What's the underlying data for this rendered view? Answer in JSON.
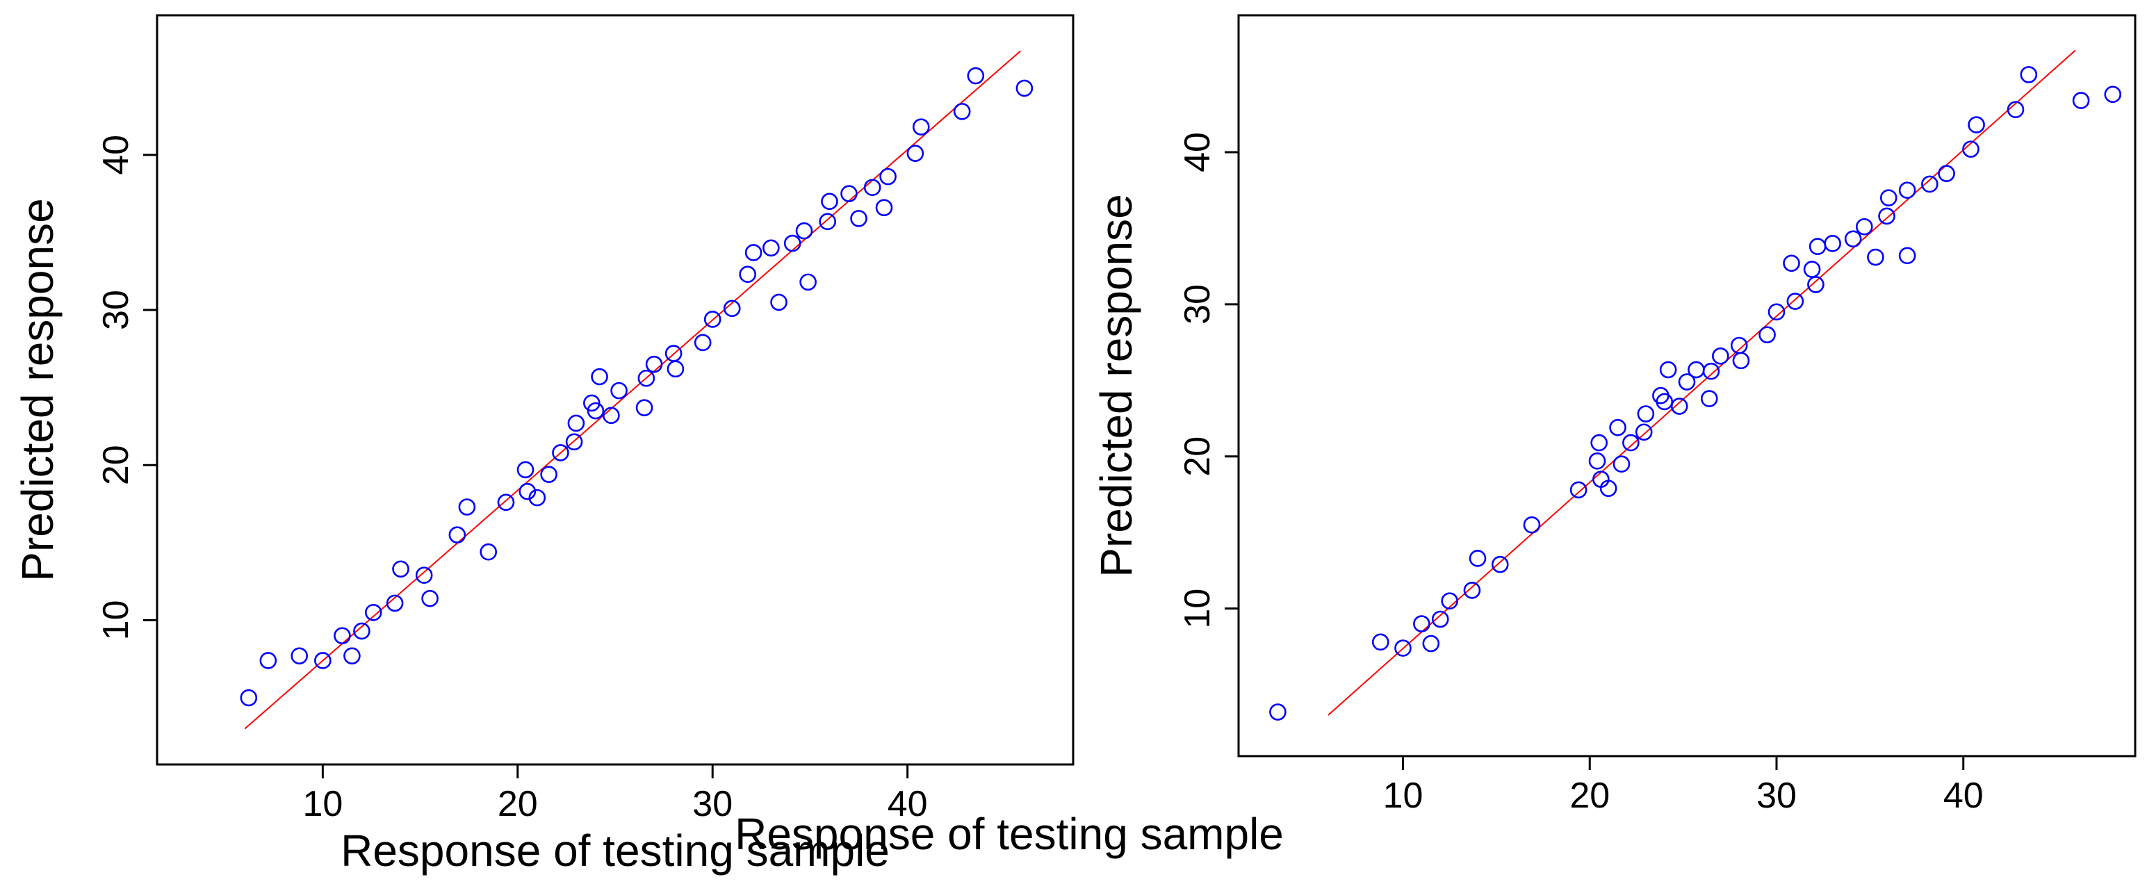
{
  "colors": {
    "points": "#0000ff",
    "fit_line": "#ff0000",
    "axes": "#000000"
  },
  "chart_data": [
    {
      "type": "scatter",
      "xlabel": "Response of testing sample",
      "ylabel": "Predicted response",
      "xlim": [
        1.5,
        48.5
      ],
      "ylim": [
        0.7,
        49.0
      ],
      "xticks": [
        "10",
        "20",
        "30",
        "40"
      ],
      "xtick_values": [
        10,
        20,
        30,
        40
      ],
      "yticks": [
        "10",
        "20",
        "30",
        "40"
      ],
      "ytick_values": [
        10,
        20,
        30,
        40
      ],
      "fit_line": [
        [
          6,
          3
        ],
        [
          45.8,
          46.7
        ]
      ],
      "points": [
        [
          6.2,
          5.0
        ],
        [
          7.2,
          7.4
        ],
        [
          8.8,
          7.7
        ],
        [
          10.0,
          7.4
        ],
        [
          11.0,
          9.0
        ],
        [
          11.5,
          7.7
        ],
        [
          12.0,
          9.3
        ],
        [
          12.6,
          10.5
        ],
        [
          13.7,
          11.1
        ],
        [
          14.0,
          13.3
        ],
        [
          15.2,
          12.9
        ],
        [
          15.5,
          11.4
        ],
        [
          16.9,
          15.5
        ],
        [
          17.4,
          17.3
        ],
        [
          18.5,
          14.4
        ],
        [
          19.4,
          17.6
        ],
        [
          20.4,
          19.7
        ],
        [
          20.5,
          18.3
        ],
        [
          21.0,
          17.9
        ],
        [
          21.6,
          19.4
        ],
        [
          22.2,
          20.8
        ],
        [
          22.9,
          21.5
        ],
        [
          23.0,
          22.7
        ],
        [
          23.8,
          24.0
        ],
        [
          24.0,
          23.5
        ],
        [
          24.2,
          25.7
        ],
        [
          24.8,
          23.2
        ],
        [
          25.2,
          24.8
        ],
        [
          26.5,
          23.7
        ],
        [
          26.6,
          25.6
        ],
        [
          27.0,
          26.5
        ],
        [
          28.0,
          27.2
        ],
        [
          28.1,
          26.2
        ],
        [
          29.5,
          27.9
        ],
        [
          30.0,
          29.4
        ],
        [
          31.0,
          30.1
        ],
        [
          31.8,
          32.3
        ],
        [
          32.1,
          33.7
        ],
        [
          33.0,
          34.0
        ],
        [
          33.4,
          30.5
        ],
        [
          34.1,
          34.3
        ],
        [
          34.7,
          35.1
        ],
        [
          34.9,
          31.8
        ],
        [
          35.9,
          35.7
        ],
        [
          36.0,
          37.0
        ],
        [
          37.0,
          37.5
        ],
        [
          37.5,
          35.9
        ],
        [
          38.2,
          37.9
        ],
        [
          38.8,
          36.6
        ],
        [
          39.0,
          38.6
        ],
        [
          40.4,
          40.1
        ],
        [
          40.7,
          41.8
        ],
        [
          42.8,
          42.8
        ],
        [
          43.5,
          45.1
        ],
        [
          46.0,
          44.3
        ]
      ]
    },
    {
      "type": "scatter",
      "xlabel": "Response of testing sample",
      "ylabel": "Predicted response",
      "xlim": [
        1.2,
        49.2
      ],
      "ylim": [
        0.3,
        49.0
      ],
      "xticks": [
        "10",
        "20",
        "30",
        "40"
      ],
      "xtick_values": [
        10,
        20,
        30,
        40
      ],
      "yticks": [
        "10",
        "20",
        "30",
        "40"
      ],
      "ytick_values": [
        10,
        20,
        30,
        40
      ],
      "fit_line": [
        [
          6,
          3
        ],
        [
          46,
          46.7
        ]
      ],
      "points": [
        [
          3.3,
          3.2
        ],
        [
          8.8,
          7.8
        ],
        [
          10.0,
          7.4
        ],
        [
          11.0,
          9.0
        ],
        [
          11.5,
          7.7
        ],
        [
          12.0,
          9.3
        ],
        [
          12.5,
          10.5
        ],
        [
          13.7,
          11.2
        ],
        [
          14.0,
          13.3
        ],
        [
          15.2,
          12.9
        ],
        [
          16.9,
          15.5
        ],
        [
          19.4,
          17.8
        ],
        [
          20.4,
          19.7
        ],
        [
          20.5,
          20.9
        ],
        [
          20.6,
          18.5
        ],
        [
          21.0,
          17.9
        ],
        [
          21.5,
          21.9
        ],
        [
          21.7,
          19.5
        ],
        [
          22.2,
          20.9
        ],
        [
          22.9,
          21.6
        ],
        [
          23.0,
          22.8
        ],
        [
          23.8,
          24.0
        ],
        [
          24.0,
          23.6
        ],
        [
          24.2,
          25.7
        ],
        [
          24.8,
          23.3
        ],
        [
          25.2,
          24.9
        ],
        [
          25.7,
          25.7
        ],
        [
          26.4,
          23.8
        ],
        [
          26.5,
          25.6
        ],
        [
          27.0,
          26.6
        ],
        [
          28.0,
          27.3
        ],
        [
          28.1,
          26.3
        ],
        [
          29.5,
          28.0
        ],
        [
          30.0,
          29.5
        ],
        [
          30.8,
          32.7
        ],
        [
          31.0,
          30.2
        ],
        [
          31.9,
          32.3
        ],
        [
          32.1,
          31.3
        ],
        [
          32.2,
          33.8
        ],
        [
          33.0,
          34.0
        ],
        [
          34.1,
          34.3
        ],
        [
          34.7,
          35.1
        ],
        [
          35.3,
          33.1
        ],
        [
          35.9,
          35.8
        ],
        [
          36.0,
          37.0
        ],
        [
          37.0,
          37.5
        ],
        [
          37.0,
          33.2
        ],
        [
          38.2,
          37.9
        ],
        [
          39.1,
          38.6
        ],
        [
          40.4,
          40.2
        ],
        [
          40.7,
          41.8
        ],
        [
          42.8,
          42.8
        ],
        [
          43.5,
          45.1
        ],
        [
          46.3,
          43.4
        ],
        [
          48.0,
          43.8
        ]
      ]
    }
  ]
}
